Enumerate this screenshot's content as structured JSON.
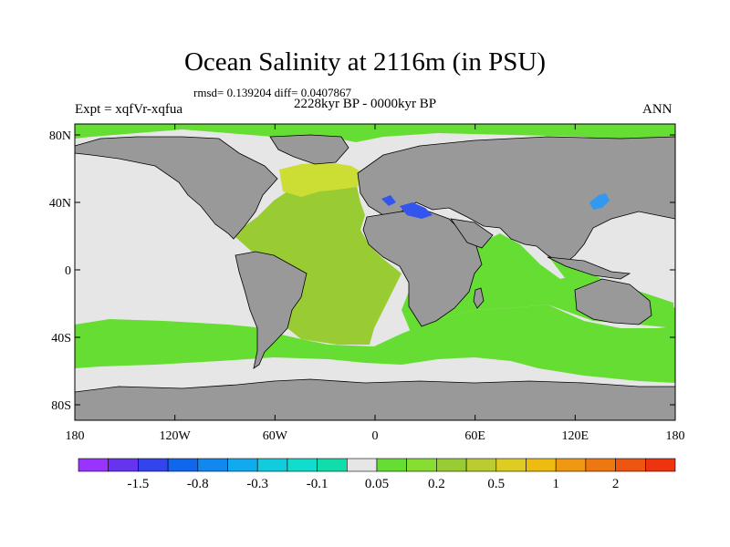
{
  "title": "Ocean Salinity at 2116m (in PSU)",
  "stats": "rmsd= 0.139204 diff= 0.0407867",
  "period": "2228kyr BP - 0000kyr BP",
  "experiment": "Expt = xqfVr-xqfua",
  "season": "ANN",
  "map": {
    "lat_labels": [
      "80N",
      "40N",
      "0",
      "40S",
      "80S"
    ],
    "lon_labels": [
      "180",
      "120W",
      "60W",
      "0",
      "60E",
      "120E",
      "180"
    ],
    "colors": {
      "land": "#999999",
      "near_zero": "#e6e6e6",
      "atlantic_anomaly": "#99cc33",
      "north_atlantic_anomaly": "#ccdd33",
      "positive_anomaly": "#66dd33",
      "mediterranean_anomaly": "#3355ee",
      "japan_sea_anomaly": "#3399ee"
    }
  },
  "colorbar": {
    "colors": [
      "#9933ff",
      "#6633ee",
      "#3344ee",
      "#1166ee",
      "#1188ee",
      "#11aaee",
      "#11ccdd",
      "#11ddcc",
      "#11ddaa",
      "#e6e6e6",
      "#66dd33",
      "#88dd33",
      "#99cc33",
      "#bbcc33",
      "#ddcc22",
      "#eebb11",
      "#ee9911",
      "#ee7711",
      "#ee5511",
      "#ee3311"
    ],
    "labels": [
      "-1.5",
      "-0.8",
      "-0.3",
      "-0.1",
      "0.05",
      "0.2",
      "0.5",
      "1",
      "2"
    ]
  }
}
